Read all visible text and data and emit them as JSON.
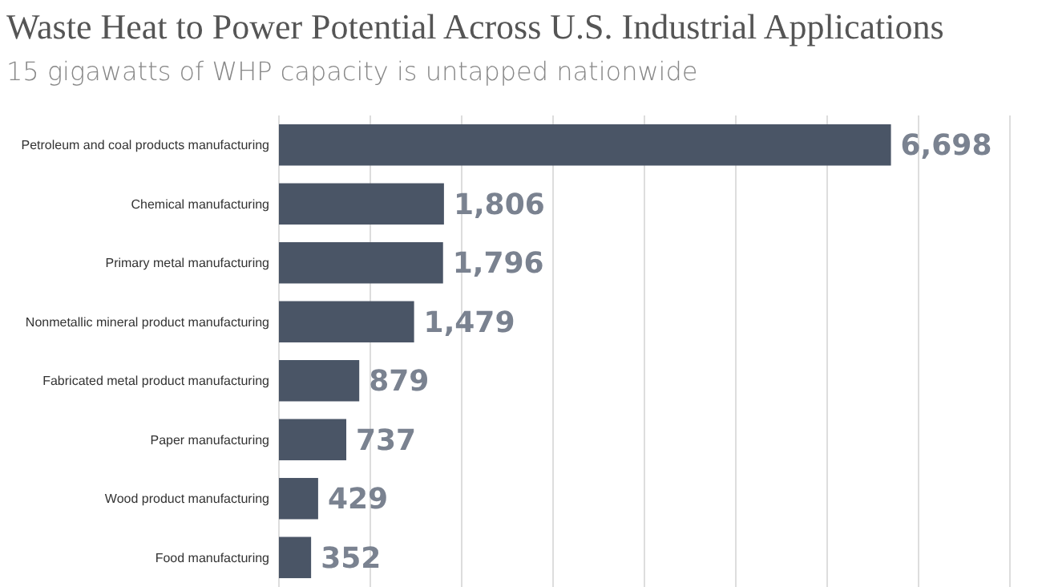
{
  "chart_data": {
    "type": "bar",
    "orientation": "horizontal",
    "title": "Waste Heat to Power Potential Across U.S. Industrial Applications",
    "subtitle": "15 gigawatts of WHP capacity is untapped nationwide",
    "categories": [
      "Petroleum and coal products manufacturing",
      "Chemical manufacturing",
      "Primary metal manufacturing",
      "Nonmetallic mineral product manufacturing",
      "Fabricated metal product manufacturing",
      "Paper manufacturing",
      "Wood product manufacturing",
      "Food manufacturing"
    ],
    "values": [
      6698,
      1806,
      1796,
      1479,
      879,
      737,
      429,
      352
    ],
    "value_labels": [
      "6,698",
      "1,806",
      "1,796",
      "1,479",
      "879",
      "737",
      "429",
      "352"
    ],
    "color": "#4a5566",
    "xlim": [
      0,
      8000
    ],
    "xticks": [
      {
        "value": 0,
        "label": null
      },
      {
        "value": 1000,
        "label": null
      },
      {
        "value": 2000,
        "label": null
      },
      {
        "value": 3000,
        "label": null
      },
      {
        "value": 4000,
        "label": null
      },
      {
        "value": 5000,
        "label": null
      },
      {
        "value": 6000,
        "label": null
      },
      {
        "value": 7000,
        "label": null
      },
      {
        "value": 8000,
        "label": null
      }
    ],
    "grid": "x",
    "tick_labels": "y"
  }
}
